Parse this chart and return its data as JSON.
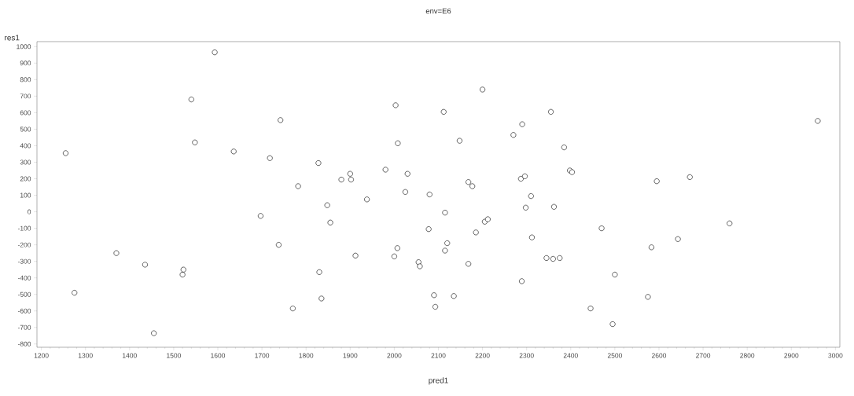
{
  "chart_data": {
    "type": "scatter",
    "title": "env=E6",
    "xlabel": "pred1",
    "ylabel": "res1",
    "xlim": [
      1190,
      3010
    ],
    "ylim": [
      -820,
      1030
    ],
    "xticks": [
      1200,
      1300,
      1400,
      1500,
      1600,
      1700,
      1800,
      1900,
      2000,
      2100,
      2200,
      2300,
      2400,
      2500,
      2600,
      2700,
      2800,
      2900,
      3000
    ],
    "yticks": [
      -800,
      -700,
      -600,
      -500,
      -400,
      -300,
      -200,
      -100,
      0,
      100,
      200,
      300,
      400,
      500,
      600,
      700,
      800,
      900,
      1000
    ],
    "grid": false,
    "marker": "circle",
    "series": [
      {
        "color": "#000000",
        "x": [
          1255,
          1275,
          1370,
          1435,
          1455,
          1520,
          1522,
          1540,
          1548,
          1593,
          1636,
          1697,
          1718,
          1738,
          1742,
          1770,
          1782,
          1828,
          1830,
          1835,
          1848,
          1855,
          1880,
          1900,
          1902,
          1912,
          1938,
          1980,
          2000,
          2003,
          2007,
          2008,
          2025,
          2030,
          2055,
          2058,
          2078,
          2080,
          2090,
          2093,
          2112,
          2115,
          2115,
          2120,
          2135,
          2148,
          2168,
          2168,
          2177,
          2185,
          2200,
          2205,
          2212,
          2270,
          2287,
          2289,
          2290,
          2296,
          2298,
          2310,
          2312,
          2345,
          2355,
          2360,
          2362,
          2375,
          2385,
          2398,
          2403,
          2445,
          2470,
          2495,
          2500,
          2575,
          2583,
          2595,
          2643,
          2670,
          2760,
          2960
        ],
        "values": [
          355,
          -490,
          -250,
          -320,
          -735,
          -380,
          -350,
          680,
          420,
          965,
          365,
          -25,
          325,
          -200,
          555,
          -585,
          155,
          295,
          -365,
          -525,
          40,
          -65,
          195,
          230,
          195,
          -265,
          75,
          255,
          -270,
          645,
          -220,
          415,
          120,
          230,
          -305,
          -330,
          -105,
          105,
          -505,
          -575,
          605,
          -5,
          -235,
          -190,
          -510,
          430,
          -315,
          180,
          155,
          -125,
          740,
          -60,
          -45,
          465,
          200,
          -420,
          530,
          215,
          25,
          95,
          -155,
          -280,
          605,
          -285,
          30,
          -280,
          390,
          250,
          240,
          -585,
          -100,
          -680,
          -380,
          -515,
          -215,
          185,
          -165,
          210,
          -70,
          550
        ]
      }
    ]
  }
}
